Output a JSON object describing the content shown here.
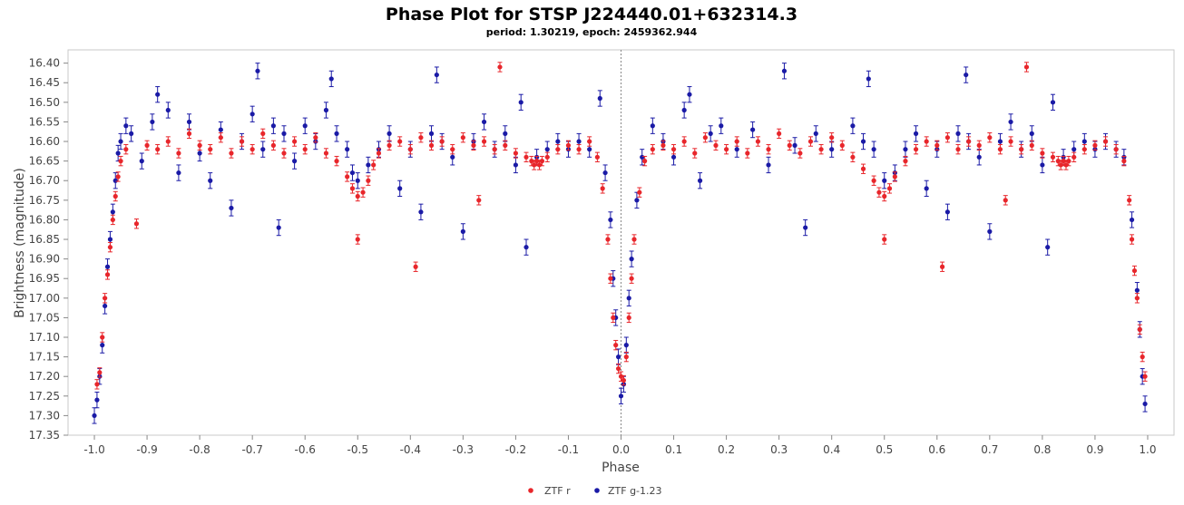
{
  "chart_data": {
    "type": "scatter",
    "title": "Phase Plot for STSP J224440.01+632314.3",
    "subtitle": "period: 1.30219, epoch: 2459362.944",
    "xlabel": "Phase",
    "ylabel": "Brightness (magnitude)",
    "xlim": [
      -1.05,
      1.05
    ],
    "ylim": [
      17.35,
      16.38
    ],
    "y_inverted": true,
    "x_ticks": [
      -1.0,
      -0.9,
      -0.8,
      -0.7,
      -0.6,
      -0.5,
      -0.4,
      -0.3,
      -0.2,
      -0.1,
      0.0,
      0.1,
      0.2,
      0.3,
      0.4,
      0.5,
      0.6,
      0.7,
      0.8,
      0.9,
      1.0
    ],
    "x_tick_labels": [
      "-1.0",
      "-0.9",
      "-0.8",
      "-0.7",
      "-0.6",
      "-0.5",
      "-0.4",
      "-0.3",
      "-0.2",
      "-0.1",
      "0.0",
      "0.1",
      "0.2",
      "0.3",
      "0.4",
      "0.5",
      "0.6",
      "0.7",
      "0.8",
      "0.9",
      "1.0"
    ],
    "y_ticks": [
      16.4,
      16.45,
      16.5,
      16.55,
      16.6,
      16.65,
      16.7,
      16.75,
      16.8,
      16.85,
      16.9,
      16.95,
      17.0,
      17.05,
      17.1,
      17.15,
      17.2,
      17.25,
      17.3,
      17.35
    ],
    "y_tick_labels": [
      "16.40",
      "16.45",
      "16.50",
      "16.55",
      "16.60",
      "16.65",
      "16.70",
      "16.75",
      "16.80",
      "16.85",
      "16.90",
      "16.95",
      "17.00",
      "17.05",
      "17.10",
      "17.15",
      "17.20",
      "17.25",
      "17.30",
      "17.35"
    ],
    "grid": false,
    "reference_line_x": 0.0,
    "legend_position": "bottom-center",
    "series": [
      {
        "name": "ZTF r",
        "color": "#e8262b",
        "error": 0.012,
        "points": [
          [
            -0.995,
            17.22
          ],
          [
            -0.99,
            17.19
          ],
          [
            -0.985,
            17.1
          ],
          [
            -0.98,
            17.0
          ],
          [
            -0.975,
            16.94
          ],
          [
            -0.97,
            16.87
          ],
          [
            -0.965,
            16.8
          ],
          [
            -0.96,
            16.74
          ],
          [
            -0.955,
            16.69
          ],
          [
            -0.95,
            16.65
          ],
          [
            -0.94,
            16.62
          ],
          [
            -0.92,
            16.81
          ],
          [
            -0.9,
            16.61
          ],
          [
            -0.88,
            16.62
          ],
          [
            -0.86,
            16.6
          ],
          [
            -0.84,
            16.63
          ],
          [
            -0.82,
            16.58
          ],
          [
            -0.8,
            16.61
          ],
          [
            -0.78,
            16.62
          ],
          [
            -0.76,
            16.59
          ],
          [
            -0.74,
            16.63
          ],
          [
            -0.72,
            16.6
          ],
          [
            -0.7,
            16.62
          ],
          [
            -0.68,
            16.58
          ],
          [
            -0.66,
            16.61
          ],
          [
            -0.64,
            16.63
          ],
          [
            -0.62,
            16.6
          ],
          [
            -0.6,
            16.62
          ],
          [
            -0.58,
            16.59
          ],
          [
            -0.56,
            16.63
          ],
          [
            -0.54,
            16.65
          ],
          [
            -0.52,
            16.69
          ],
          [
            -0.51,
            16.72
          ],
          [
            -0.5,
            16.74
          ],
          [
            -0.5,
            16.85
          ],
          [
            -0.49,
            16.73
          ],
          [
            -0.48,
            16.7
          ],
          [
            -0.47,
            16.66
          ],
          [
            -0.46,
            16.63
          ],
          [
            -0.44,
            16.61
          ],
          [
            -0.42,
            16.6
          ],
          [
            -0.4,
            16.62
          ],
          [
            -0.39,
            16.92
          ],
          [
            -0.38,
            16.59
          ],
          [
            -0.36,
            16.61
          ],
          [
            -0.34,
            16.6
          ],
          [
            -0.32,
            16.62
          ],
          [
            -0.3,
            16.59
          ],
          [
            -0.28,
            16.61
          ],
          [
            -0.27,
            16.75
          ],
          [
            -0.26,
            16.6
          ],
          [
            -0.24,
            16.62
          ],
          [
            -0.23,
            16.41
          ],
          [
            -0.22,
            16.61
          ],
          [
            -0.2,
            16.63
          ],
          [
            -0.18,
            16.64
          ],
          [
            -0.17,
            16.65
          ],
          [
            -0.165,
            16.66
          ],
          [
            -0.16,
            16.65
          ],
          [
            -0.155,
            16.66
          ],
          [
            -0.15,
            16.65
          ],
          [
            -0.14,
            16.64
          ],
          [
            -0.12,
            16.62
          ],
          [
            -0.1,
            16.61
          ],
          [
            -0.08,
            16.62
          ],
          [
            -0.06,
            16.6
          ],
          [
            -0.045,
            16.64
          ],
          [
            -0.035,
            16.72
          ],
          [
            -0.025,
            16.85
          ],
          [
            -0.02,
            16.95
          ],
          [
            -0.015,
            17.05
          ],
          [
            -0.01,
            17.12
          ],
          [
            -0.005,
            17.18
          ],
          [
            0.0,
            17.2
          ],
          [
            0.005,
            17.21
          ],
          [
            0.01,
            17.15
          ],
          [
            0.015,
            17.05
          ],
          [
            0.02,
            16.95
          ],
          [
            0.025,
            16.85
          ],
          [
            0.035,
            16.73
          ],
          [
            0.045,
            16.65
          ],
          [
            0.06,
            16.62
          ],
          [
            0.08,
            16.61
          ],
          [
            0.1,
            16.62
          ],
          [
            0.12,
            16.6
          ],
          [
            0.14,
            16.63
          ],
          [
            0.16,
            16.59
          ],
          [
            0.18,
            16.61
          ],
          [
            0.2,
            16.62
          ],
          [
            0.22,
            16.6
          ],
          [
            0.24,
            16.63
          ],
          [
            0.26,
            16.6
          ],
          [
            0.28,
            16.62
          ],
          [
            0.3,
            16.58
          ],
          [
            0.32,
            16.61
          ],
          [
            0.34,
            16.63
          ],
          [
            0.36,
            16.6
          ],
          [
            0.38,
            16.62
          ],
          [
            0.4,
            16.59
          ],
          [
            0.42,
            16.61
          ],
          [
            0.44,
            16.64
          ],
          [
            0.46,
            16.67
          ],
          [
            0.48,
            16.7
          ],
          [
            0.49,
            16.73
          ],
          [
            0.5,
            16.74
          ],
          [
            0.5,
            16.85
          ],
          [
            0.51,
            16.72
          ],
          [
            0.52,
            16.69
          ],
          [
            0.54,
            16.65
          ],
          [
            0.56,
            16.62
          ],
          [
            0.58,
            16.6
          ],
          [
            0.6,
            16.61
          ],
          [
            0.61,
            16.92
          ],
          [
            0.62,
            16.59
          ],
          [
            0.64,
            16.62
          ],
          [
            0.66,
            16.6
          ],
          [
            0.68,
            16.61
          ],
          [
            0.7,
            16.59
          ],
          [
            0.72,
            16.62
          ],
          [
            0.73,
            16.75
          ],
          [
            0.74,
            16.6
          ],
          [
            0.76,
            16.62
          ],
          [
            0.77,
            16.41
          ],
          [
            0.78,
            16.61
          ],
          [
            0.8,
            16.63
          ],
          [
            0.82,
            16.64
          ],
          [
            0.83,
            16.65
          ],
          [
            0.835,
            16.66
          ],
          [
            0.84,
            16.65
          ],
          [
            0.845,
            16.66
          ],
          [
            0.85,
            16.65
          ],
          [
            0.86,
            16.64
          ],
          [
            0.88,
            16.62
          ],
          [
            0.9,
            16.61
          ],
          [
            0.92,
            16.6
          ],
          [
            0.94,
            16.62
          ],
          [
            0.955,
            16.65
          ],
          [
            0.965,
            16.75
          ],
          [
            0.97,
            16.85
          ],
          [
            0.975,
            16.93
          ],
          [
            0.98,
            17.0
          ],
          [
            0.985,
            17.08
          ],
          [
            0.99,
            17.15
          ],
          [
            0.995,
            17.2
          ]
        ]
      },
      {
        "name": "ZTF g-1.23",
        "color": "#1a1aa6",
        "error": 0.02,
        "points": [
          [
            -1.0,
            17.3
          ],
          [
            -0.995,
            17.26
          ],
          [
            -0.99,
            17.2
          ],
          [
            -0.985,
            17.12
          ],
          [
            -0.98,
            17.02
          ],
          [
            -0.975,
            16.92
          ],
          [
            -0.97,
            16.85
          ],
          [
            -0.965,
            16.78
          ],
          [
            -0.96,
            16.7
          ],
          [
            -0.955,
            16.63
          ],
          [
            -0.95,
            16.6
          ],
          [
            -0.94,
            16.56
          ],
          [
            -0.93,
            16.58
          ],
          [
            -0.91,
            16.65
          ],
          [
            -0.89,
            16.55
          ],
          [
            -0.88,
            16.48
          ],
          [
            -0.86,
            16.52
          ],
          [
            -0.84,
            16.68
          ],
          [
            -0.82,
            16.55
          ],
          [
            -0.8,
            16.63
          ],
          [
            -0.78,
            16.7
          ],
          [
            -0.76,
            16.57
          ],
          [
            -0.74,
            16.77
          ],
          [
            -0.72,
            16.6
          ],
          [
            -0.7,
            16.53
          ],
          [
            -0.69,
            16.42
          ],
          [
            -0.68,
            16.62
          ],
          [
            -0.66,
            16.56
          ],
          [
            -0.65,
            16.82
          ],
          [
            -0.64,
            16.58
          ],
          [
            -0.62,
            16.65
          ],
          [
            -0.6,
            16.56
          ],
          [
            -0.58,
            16.6
          ],
          [
            -0.56,
            16.52
          ],
          [
            -0.55,
            16.44
          ],
          [
            -0.54,
            16.58
          ],
          [
            -0.52,
            16.62
          ],
          [
            -0.51,
            16.68
          ],
          [
            -0.5,
            16.7
          ],
          [
            -0.48,
            16.66
          ],
          [
            -0.46,
            16.62
          ],
          [
            -0.44,
            16.58
          ],
          [
            -0.42,
            16.72
          ],
          [
            -0.4,
            16.62
          ],
          [
            -0.38,
            16.78
          ],
          [
            -0.36,
            16.58
          ],
          [
            -0.35,
            16.43
          ],
          [
            -0.34,
            16.6
          ],
          [
            -0.32,
            16.64
          ],
          [
            -0.3,
            16.83
          ],
          [
            -0.28,
            16.6
          ],
          [
            -0.26,
            16.55
          ],
          [
            -0.24,
            16.62
          ],
          [
            -0.22,
            16.58
          ],
          [
            -0.2,
            16.66
          ],
          [
            -0.19,
            16.5
          ],
          [
            -0.18,
            16.87
          ],
          [
            -0.16,
            16.64
          ],
          [
            -0.14,
            16.62
          ],
          [
            -0.12,
            16.6
          ],
          [
            -0.1,
            16.62
          ],
          [
            -0.08,
            16.6
          ],
          [
            -0.06,
            16.62
          ],
          [
            -0.04,
            16.49
          ],
          [
            -0.03,
            16.68
          ],
          [
            -0.02,
            16.8
          ],
          [
            -0.015,
            16.95
          ],
          [
            -0.01,
            17.05
          ],
          [
            -0.005,
            17.15
          ],
          [
            0.0,
            17.25
          ],
          [
            0.005,
            17.22
          ],
          [
            0.01,
            17.12
          ],
          [
            0.015,
            17.0
          ],
          [
            0.02,
            16.9
          ],
          [
            0.03,
            16.75
          ],
          [
            0.04,
            16.64
          ],
          [
            0.06,
            16.56
          ],
          [
            0.08,
            16.6
          ],
          [
            0.1,
            16.64
          ],
          [
            0.12,
            16.52
          ],
          [
            0.13,
            16.48
          ],
          [
            0.15,
            16.7
          ],
          [
            0.17,
            16.58
          ],
          [
            0.19,
            16.56
          ],
          [
            0.22,
            16.62
          ],
          [
            0.25,
            16.57
          ],
          [
            0.28,
            16.66
          ],
          [
            0.31,
            16.42
          ],
          [
            0.33,
            16.61
          ],
          [
            0.35,
            16.82
          ],
          [
            0.37,
            16.58
          ],
          [
            0.4,
            16.62
          ],
          [
            0.44,
            16.56
          ],
          [
            0.46,
            16.6
          ],
          [
            0.47,
            16.44
          ],
          [
            0.48,
            16.62
          ],
          [
            0.5,
            16.7
          ],
          [
            0.52,
            16.68
          ],
          [
            0.54,
            16.62
          ],
          [
            0.56,
            16.58
          ],
          [
            0.58,
            16.72
          ],
          [
            0.6,
            16.62
          ],
          [
            0.62,
            16.78
          ],
          [
            0.64,
            16.58
          ],
          [
            0.655,
            16.43
          ],
          [
            0.66,
            16.6
          ],
          [
            0.68,
            16.64
          ],
          [
            0.7,
            16.83
          ],
          [
            0.72,
            16.6
          ],
          [
            0.74,
            16.55
          ],
          [
            0.76,
            16.62
          ],
          [
            0.78,
            16.58
          ],
          [
            0.8,
            16.66
          ],
          [
            0.81,
            16.87
          ],
          [
            0.82,
            16.5
          ],
          [
            0.84,
            16.64
          ],
          [
            0.86,
            16.62
          ],
          [
            0.88,
            16.6
          ],
          [
            0.9,
            16.62
          ],
          [
            0.92,
            16.6
          ],
          [
            0.94,
            16.62
          ],
          [
            0.955,
            16.64
          ],
          [
            0.97,
            16.8
          ],
          [
            0.98,
            16.98
          ],
          [
            0.985,
            17.08
          ],
          [
            0.99,
            17.2
          ],
          [
            0.995,
            17.27
          ]
        ]
      }
    ]
  }
}
